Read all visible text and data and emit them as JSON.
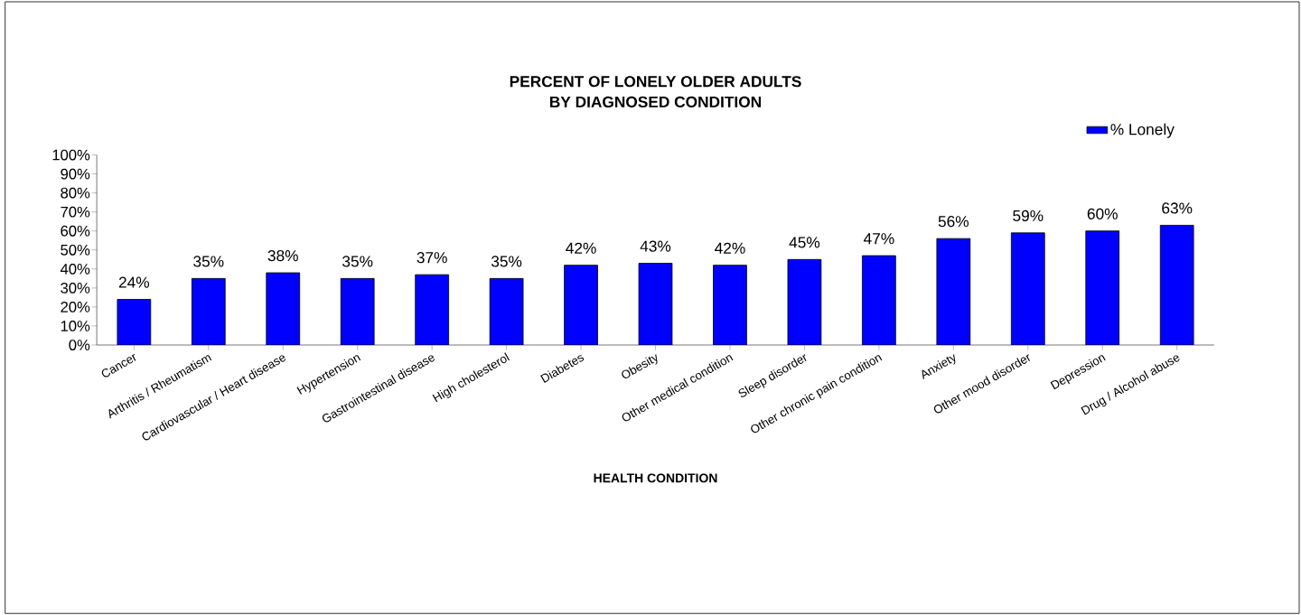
{
  "chart_data": {
    "type": "bar",
    "title": "PERCENT OF LONELY OLDER ADULTS\nBY DIAGNOSED CONDITION",
    "xlabel": "HEALTH CONDITION",
    "categories": [
      "Cancer",
      "Arthritis / Rheumatism",
      "Cardiovascular / Heart disease",
      "Hypertension",
      "Gastrointestinal disease",
      "High cholesterol",
      "Diabetes",
      "Obesity",
      "Other medical condition",
      "Sleep disorder",
      "Other chronic pain condition",
      "Anxiety",
      "Other mood disorder",
      "Depression",
      "Drug / Alcohol abuse"
    ],
    "series": [
      {
        "name": "% Lonely",
        "color": "#0000ff",
        "values": [
          24,
          35,
          38,
          35,
          37,
          35,
          42,
          43,
          42,
          45,
          47,
          56,
          59,
          60,
          63
        ],
        "value_labels": [
          "24%",
          "35%",
          "38%",
          "35%",
          "37%",
          "35%",
          "42%",
          "43%",
          "42%",
          "45%",
          "47%",
          "56%",
          "59%",
          "60%",
          "63%"
        ]
      }
    ],
    "ylim": [
      0,
      100
    ],
    "yticks": [
      {
        "value": 0,
        "label": "0%"
      },
      {
        "value": 10,
        "label": "10%"
      },
      {
        "value": 20,
        "label": "20%"
      },
      {
        "value": 30,
        "label": "30%"
      },
      {
        "value": 40,
        "label": "40%"
      },
      {
        "value": 50,
        "label": "50%"
      },
      {
        "value": 60,
        "label": "60%"
      },
      {
        "value": 70,
        "label": "70%"
      },
      {
        "value": 80,
        "label": "80%"
      },
      {
        "value": 90,
        "label": "90%"
      },
      {
        "value": 100,
        "label": "100%"
      }
    ],
    "legend": "top right"
  }
}
